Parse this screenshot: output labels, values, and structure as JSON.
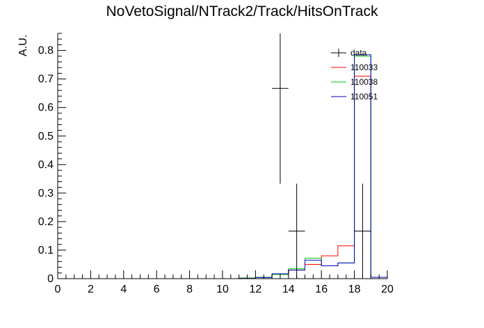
{
  "chart_data": {
    "type": "histogram",
    "title": "NoVetoSignal/NTrack2/Track/HitsOnTrack",
    "xlabel": "",
    "ylabel": "A.U.",
    "xlim": [
      0,
      20
    ],
    "ylim": [
      0,
      0.86
    ],
    "xticks": [
      "0",
      "2",
      "4",
      "6",
      "8",
      "10",
      "12",
      "14",
      "16",
      "18",
      "20"
    ],
    "yticks": [
      "0",
      "0.1",
      "0.2",
      "0.3",
      "0.4",
      "0.5",
      "0.6",
      "0.7",
      "0.8"
    ],
    "bin_edges": [
      0,
      1,
      2,
      3,
      4,
      5,
      6,
      7,
      8,
      9,
      10,
      11,
      12,
      13,
      14,
      15,
      16,
      17,
      18,
      19,
      20
    ],
    "legend_position": "top-right",
    "series": [
      {
        "name": "110033",
        "color": "#ff0000",
        "values": [
          0,
          0,
          0,
          0,
          0,
          0,
          0,
          0,
          0,
          0,
          0,
          0.002,
          0.005,
          0.015,
          0.03,
          0.05,
          0.08,
          0.115,
          0.71,
          0.005
        ]
      },
      {
        "name": "110038",
        "color": "#00cc00",
        "values": [
          0,
          0,
          0,
          0,
          0,
          0,
          0,
          0,
          0,
          0,
          0,
          0.002,
          0.005,
          0.015,
          0.035,
          0.072,
          0.045,
          0.055,
          0.78,
          0.005
        ]
      },
      {
        "name": "110051",
        "color": "#0000cc",
        "values": [
          0,
          0,
          0,
          0,
          0,
          0,
          0,
          0,
          0,
          0,
          0,
          0.001,
          0.004,
          0.017,
          0.03,
          0.065,
          0.045,
          0.055,
          0.785,
          0.005
        ]
      }
    ],
    "data_points": {
      "name": "data",
      "color": "#000000",
      "points": [
        {
          "x": 13.5,
          "y": 0.667,
          "ylow": 0.333,
          "yhigh": 0.86
        },
        {
          "x": 14.5,
          "y": 0.167,
          "ylow": 0.0,
          "yhigh": 0.333
        },
        {
          "x": 18.5,
          "y": 0.167,
          "ylow": 0.0,
          "yhigh": 0.333
        }
      ]
    }
  }
}
